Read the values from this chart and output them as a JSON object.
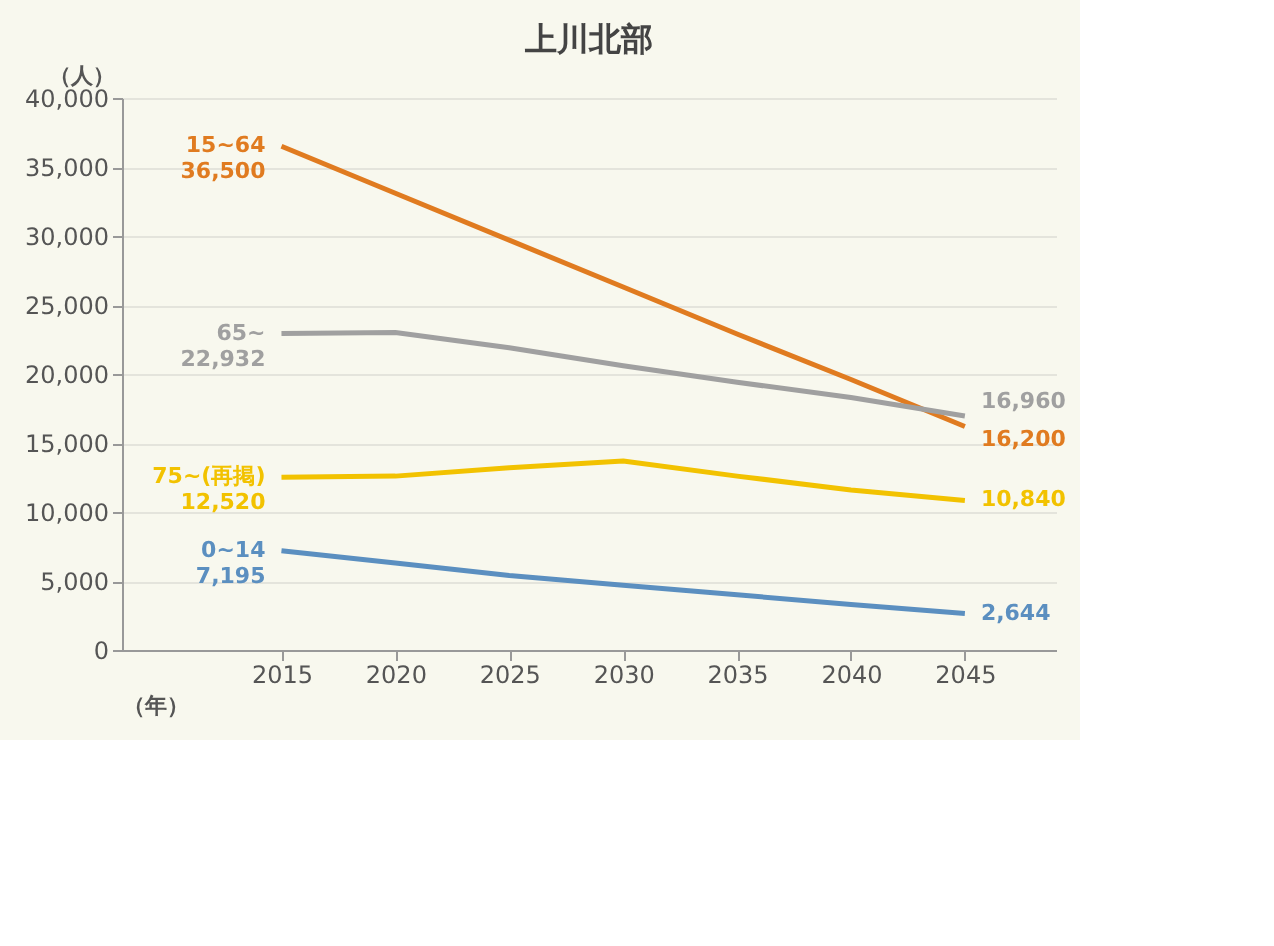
{
  "chart_data": {
    "type": "line",
    "title": "上川北部",
    "xlabel": "（年）",
    "ylabel": "（人）",
    "x": [
      2015,
      2020,
      2025,
      2030,
      2035,
      2040,
      2045
    ],
    "xlim": [
      2008,
      2049
    ],
    "xticks": [
      2015,
      2020,
      2025,
      2030,
      2035,
      2040,
      2045
    ],
    "ylim": [
      0,
      40000
    ],
    "yticks": [
      {
        "value": 0,
        "label": "0"
      },
      {
        "value": 5000,
        "label": "5,000"
      },
      {
        "value": 10000,
        "label": "10,000"
      },
      {
        "value": 15000,
        "label": "15,000"
      },
      {
        "value": 20000,
        "label": "20,000"
      },
      {
        "value": 25000,
        "label": "25,000"
      },
      {
        "value": 30000,
        "label": "30,000"
      },
      {
        "value": 35000,
        "label": "35,000"
      },
      {
        "value": 40000,
        "label": "40,000"
      }
    ],
    "grid": "y",
    "legend": false,
    "marker": "none",
    "line_style": "solid",
    "series": [
      {
        "name": "15~64",
        "color": "#e07b20",
        "values": [
          36500,
          33100,
          29700,
          26300,
          22900,
          19600,
          16200
        ],
        "value_labels": [
          "36,500",
          null,
          null,
          null,
          null,
          null,
          "16,200"
        ]
      },
      {
        "name": "65~",
        "color": "#a0a0a0",
        "values": [
          22932,
          23000,
          21900,
          20600,
          19400,
          18300,
          16960
        ],
        "value_labels": [
          "22,932",
          null,
          null,
          null,
          null,
          null,
          "16,960"
        ]
      },
      {
        "name": "75~(再掲)",
        "color": "#f2c200",
        "values": [
          12520,
          12600,
          13200,
          13700,
          12600,
          11600,
          10840
        ],
        "value_labels": [
          "12,520",
          null,
          null,
          null,
          null,
          null,
          "10,840"
        ]
      },
      {
        "name": "0~14",
        "color": "#5b8fc0",
        "values": [
          7195,
          6300,
          5400,
          4700,
          4000,
          3300,
          2644
        ],
        "value_labels": [
          "7,195",
          null,
          null,
          null,
          null,
          null,
          "2,644"
        ]
      }
    ]
  }
}
